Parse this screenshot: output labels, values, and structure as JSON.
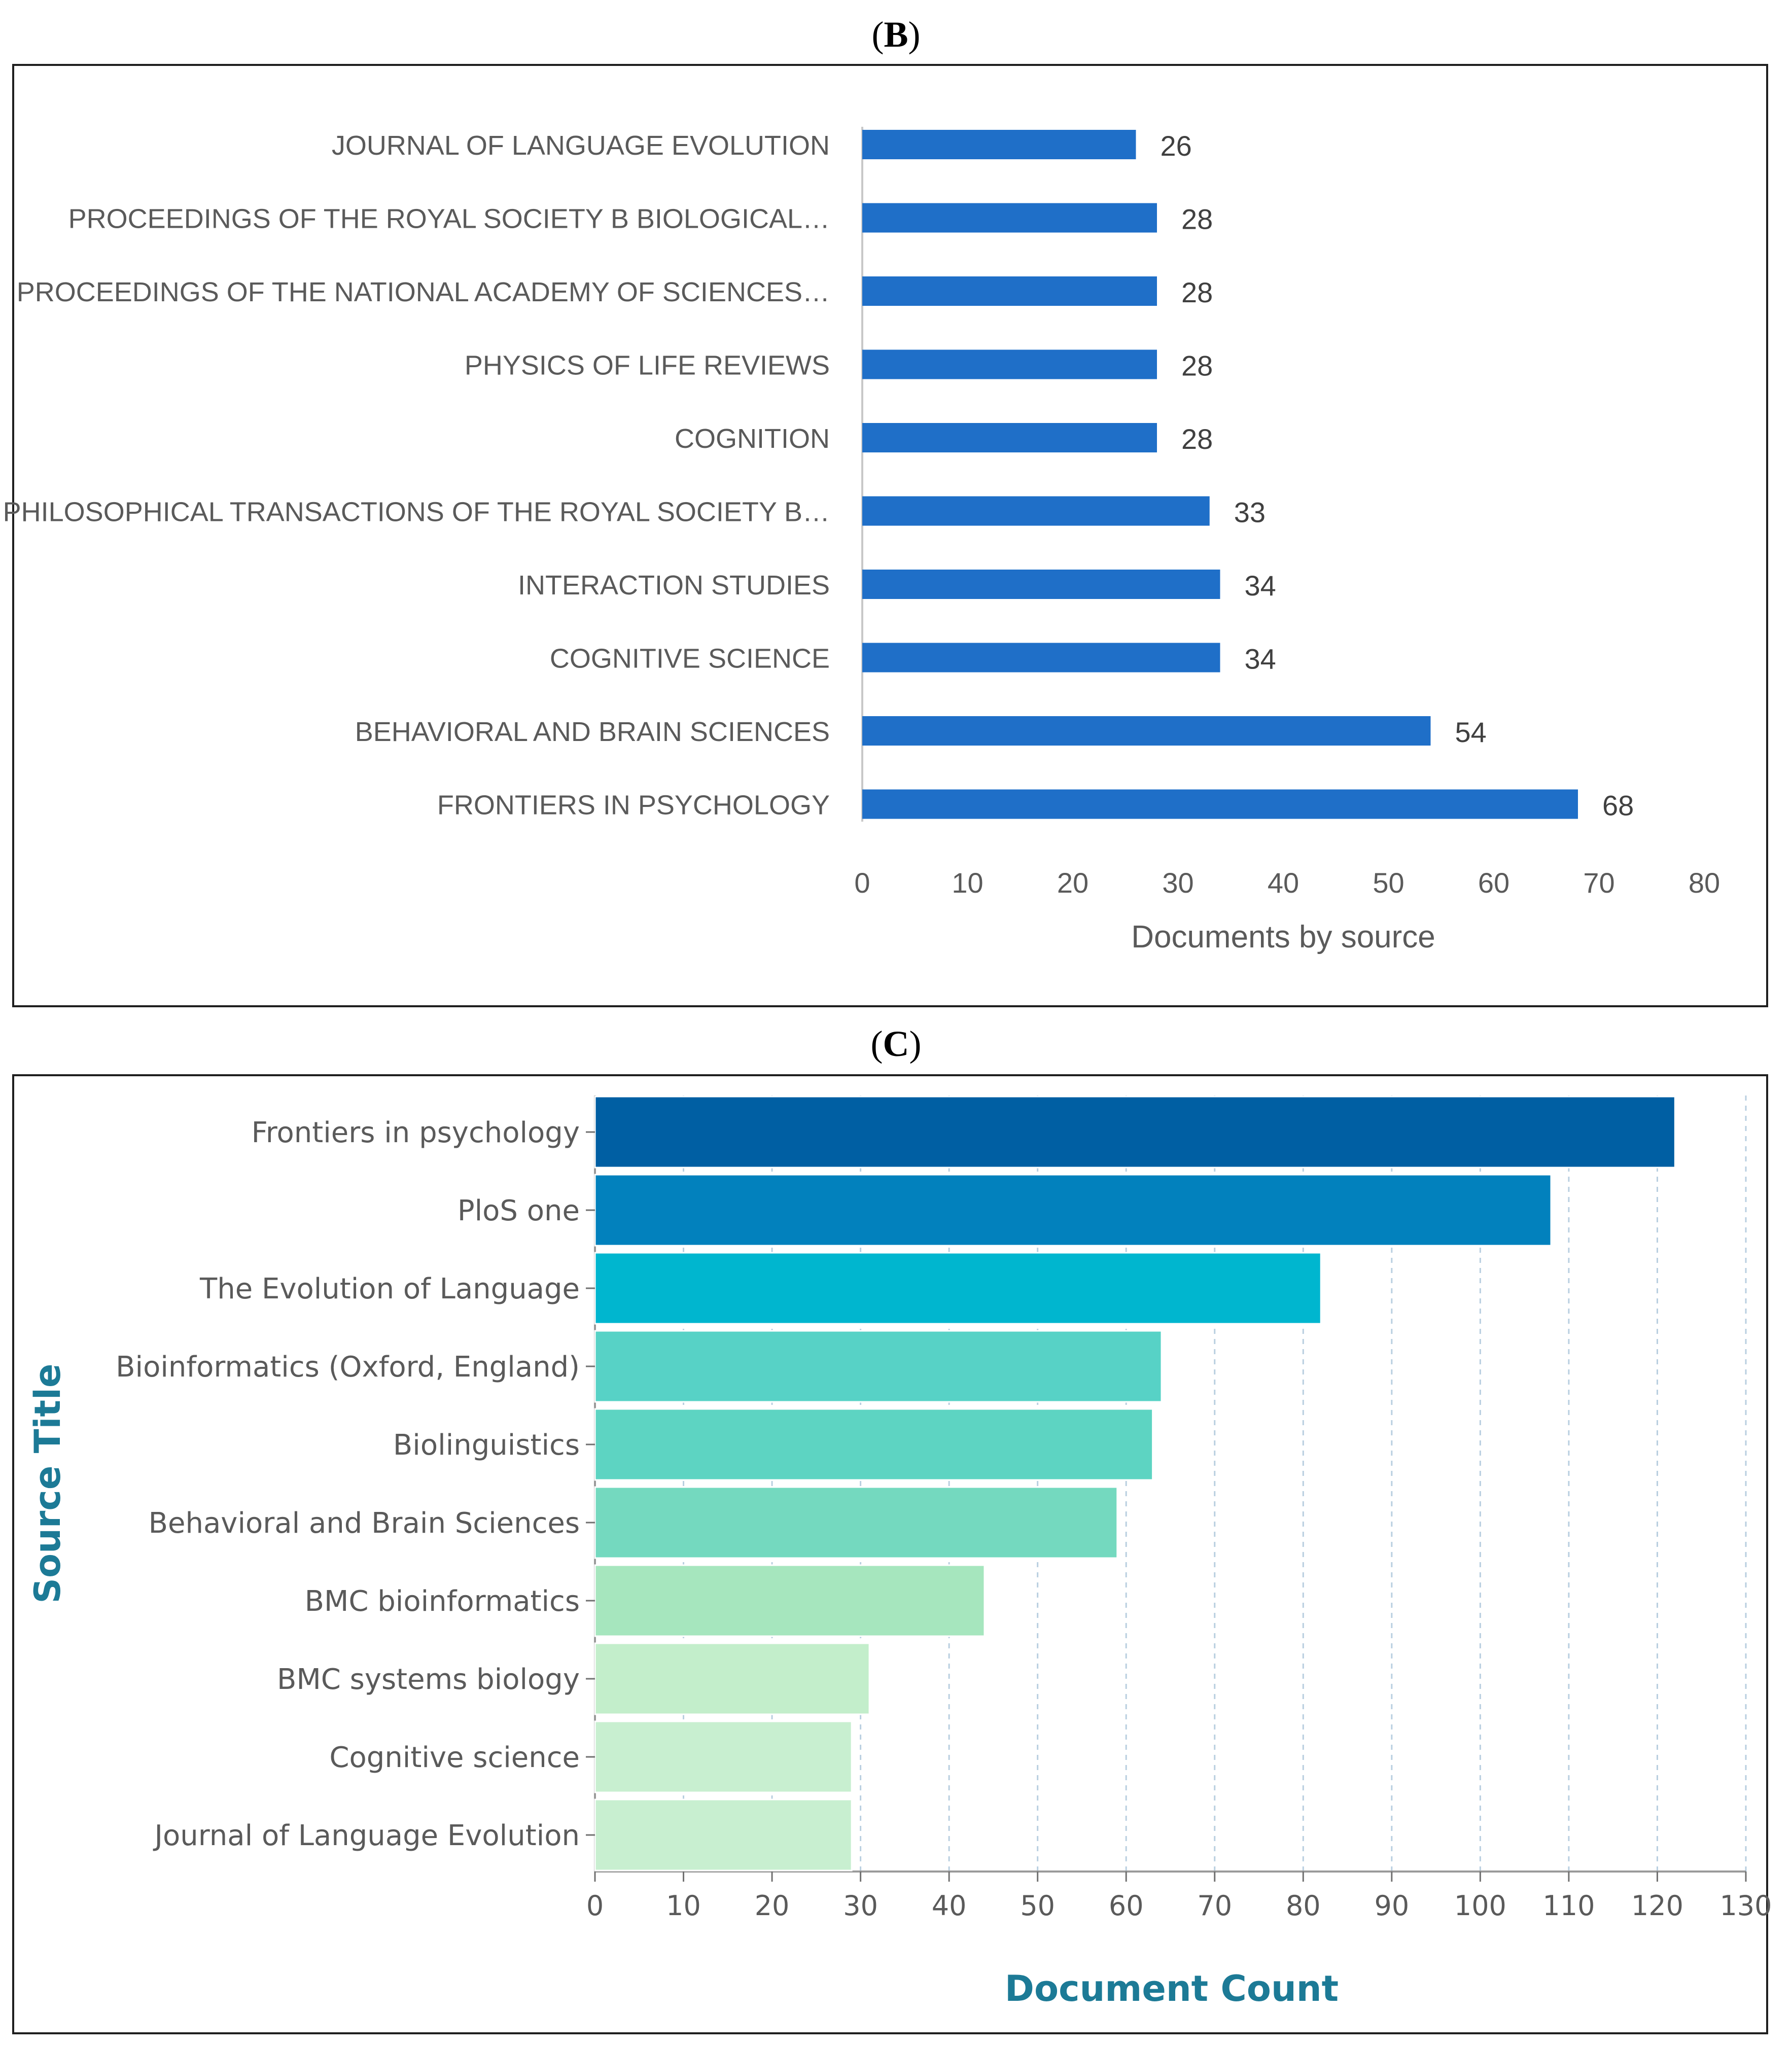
{
  "panels": {
    "b": {
      "label_open": "(",
      "label_letter": "B",
      "label_close": ")"
    },
    "c": {
      "label_open": "(",
      "label_letter": "C",
      "label_close": ")"
    }
  },
  "chart_data": [
    {
      "id": "B",
      "type": "bar",
      "orientation": "horizontal",
      "title": "",
      "xlabel": "Documents by source",
      "ylabel": "",
      "xlim": [
        0,
        80
      ],
      "xticks": [
        0,
        10,
        20,
        30,
        40,
        50,
        60,
        70,
        80
      ],
      "grid": false,
      "data_labels": true,
      "bar_color": "#1f6fc8",
      "categories": [
        "JOURNAL OF LANGUAGE EVOLUTION",
        "PROCEEDINGS OF THE ROYAL SOCIETY B BIOLOGICAL…",
        "PROCEEDINGS OF THE NATIONAL ACADEMY OF SCIENCES…",
        "PHYSICS OF LIFE REVIEWS",
        "COGNITION",
        "PHILOSOPHICAL TRANSACTIONS OF THE ROYAL SOCIETY B…",
        "INTERACTION STUDIES",
        "COGNITIVE SCIENCE",
        "BEHAVIORAL AND BRAIN SCIENCES",
        "FRONTIERS IN PSYCHOLOGY"
      ],
      "values": [
        26,
        28,
        28,
        28,
        28,
        33,
        34,
        34,
        54,
        68
      ]
    },
    {
      "id": "C",
      "type": "bar",
      "orientation": "horizontal",
      "title": "",
      "xlabel": "Document Count",
      "ylabel": "Source Title",
      "xlim": [
        0,
        130
      ],
      "xticks": [
        0,
        10,
        20,
        30,
        40,
        50,
        60,
        70,
        80,
        90,
        100,
        110,
        120,
        130
      ],
      "grid": true,
      "data_labels": false,
      "axis_title_color": "#1c7a96",
      "categories": [
        "Frontiers in psychology",
        "PloS one",
        "The Evolution of Language",
        "Bioinformatics (Oxford, England)",
        "Biolinguistics",
        "Behavioral and Brain Sciences",
        "BMC bioinformatics",
        "BMC systems biology",
        "Cognitive science",
        "Journal of Language Evolution"
      ],
      "values": [
        122,
        108,
        82,
        64,
        63,
        59,
        44,
        31,
        29,
        29
      ],
      "colors": [
        "#005fa3",
        "#0281bd",
        "#00b6cf",
        "#57d2c6",
        "#5dd4c2",
        "#74d9bf",
        "#a6e6be",
        "#c3eecb",
        "#c8efd0",
        "#c8efd0"
      ]
    }
  ]
}
